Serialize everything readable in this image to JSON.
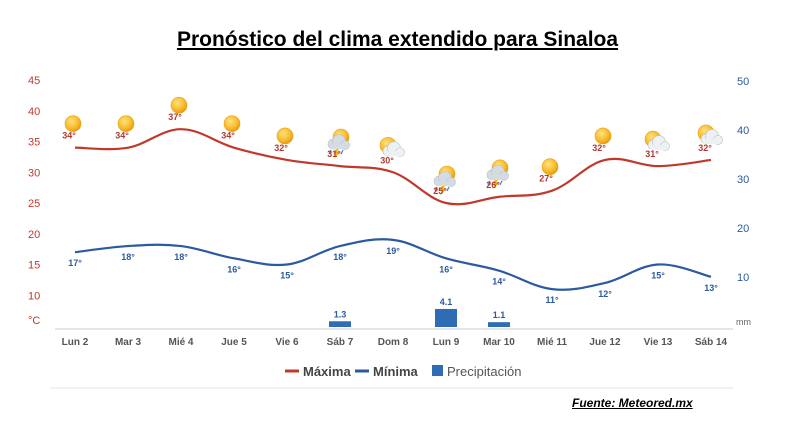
{
  "title": "Pronóstico del clima extendido para Sinaloa",
  "source": "Fuente: Meteored.mx",
  "chart_data": {
    "type": "line",
    "categories": [
      "Lun 2",
      "Mar 3",
      "Mié 4",
      "Jue 5",
      "Vie 6",
      "Sáb 7",
      "Dom 8",
      "Lun 9",
      "Mar 10",
      "Mié 11",
      "Jue 12",
      "Vie 13",
      "Sáb 14"
    ],
    "series": [
      {
        "name": "Máxima",
        "values": [
          34,
          34,
          37,
          34,
          32,
          31,
          30,
          25,
          26,
          27,
          32,
          31,
          32
        ],
        "labels": [
          "34°",
          "34°",
          "37°",
          "34°",
          "32°",
          "31°",
          "30°",
          "25°",
          "26°",
          "27°",
          "32°",
          "31°",
          "32°"
        ],
        "color": "#c0392b"
      },
      {
        "name": "Mínima",
        "values": [
          17,
          18,
          18,
          16,
          15,
          18,
          19,
          16,
          14,
          11,
          12,
          15,
          13
        ],
        "labels": [
          "17°",
          "18°",
          "18°",
          "16°",
          "15°",
          "18°",
          "19°",
          "16°",
          "14°",
          "11°",
          "12°",
          "15°",
          "13°"
        ],
        "color": "#2c5aa0"
      },
      {
        "name": "Precipitación",
        "type": "bar",
        "values": [
          0,
          0,
          0,
          0,
          0,
          1.3,
          0,
          4.1,
          1.1,
          0,
          0,
          0,
          0
        ],
        "labels": [
          "",
          "",
          "",
          "",
          "",
          "1.3",
          "",
          "4.1",
          "1.1",
          "",
          "",
          "",
          ""
        ],
        "color": "#2e6db3"
      }
    ],
    "left_axis": {
      "unit": "°C",
      "ticks": [
        "45",
        "40",
        "35",
        "30",
        "25",
        "20",
        "15",
        "10"
      ],
      "min": 5,
      "max": 45
    },
    "right_axis": {
      "unit": "mm",
      "ticks": [
        "50",
        "40",
        "30",
        "20",
        "10"
      ],
      "min": 0,
      "max": 50
    },
    "icons": [
      "sun-icon",
      "sun-icon",
      "sun-icon",
      "sun-icon",
      "sun-icon",
      "storm-icon",
      "partly-cloudy-icon",
      "storm-icon",
      "storm-icon",
      "sun-icon",
      "sun-icon",
      "partly-cloudy-icon",
      "partly-cloudy-icon"
    ],
    "legend": [
      {
        "name": "Máxima",
        "color": "#c0392b"
      },
      {
        "name": "Mínima",
        "color": "#2c5aa0"
      },
      {
        "name": "Precipitación",
        "color": "#2e6db3"
      }
    ],
    "legend_position": "bottom",
    "grid": true
  }
}
